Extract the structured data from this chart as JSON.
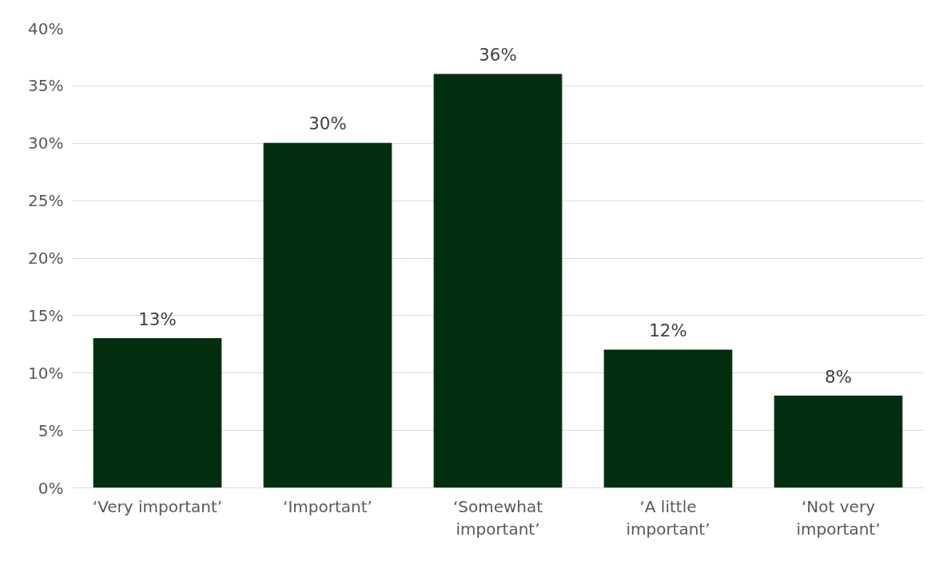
{
  "chart_data": {
    "type": "bar",
    "categories": [
      "‘Very important’",
      "‘Important’",
      "‘Somewhat important’",
      "‘A little important’",
      "‘Not very important’"
    ],
    "values": [
      13,
      30,
      36,
      12,
      8
    ],
    "color": "#002e0e",
    "value_labels": [
      "13%",
      "30%",
      "36%",
      "12%",
      "8%"
    ],
    "ylim": [
      0,
      40
    ],
    "yticks": [
      {
        "value": 0,
        "label": "0%"
      },
      {
        "value": 5,
        "label": "5%"
      },
      {
        "value": 10,
        "label": "10%"
      },
      {
        "value": 15,
        "label": "15%"
      },
      {
        "value": 20,
        "label": "20%"
      },
      {
        "value": 25,
        "label": "25%"
      },
      {
        "value": 30,
        "label": "30%"
      },
      {
        "value": 35,
        "label": "35%"
      },
      {
        "value": 40,
        "label": "40%"
      }
    ],
    "grid": "y"
  }
}
